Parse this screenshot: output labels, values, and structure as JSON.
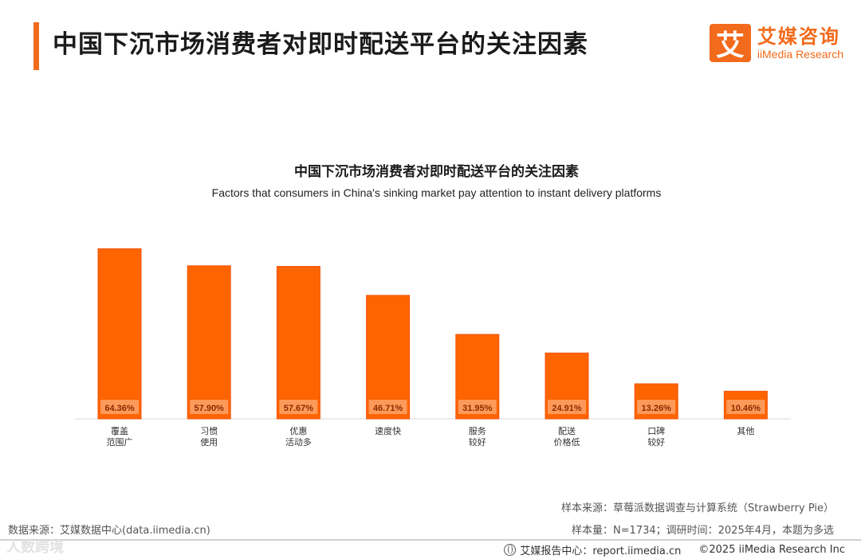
{
  "header": {
    "title": "中国下沉市场消费者对即时配送平台的关注因素",
    "brand_cn": "艾媒咨询",
    "brand_en": "iiMedia Research",
    "brand_mark": "艾"
  },
  "chart_data": {
    "type": "bar",
    "title": "中国下沉市场消费者对即时配送平台的关注因素",
    "subtitle": "Factors that consumers in China's sinking market pay attention to instant delivery platforms",
    "categories": [
      [
        "覆盖",
        "范围广"
      ],
      [
        "习惯",
        "使用"
      ],
      [
        "优惠",
        "活动多"
      ],
      [
        "速度快"
      ],
      [
        "服务",
        "较好"
      ],
      [
        "配送",
        "价格低"
      ],
      [
        "口碑",
        "较好"
      ],
      [
        "其他"
      ]
    ],
    "values": [
      64.36,
      57.9,
      57.67,
      46.71,
      31.95,
      24.91,
      13.26,
      10.46
    ],
    "value_labels": [
      "64.36%",
      "57.90%",
      "57.67%",
      "46.71%",
      "31.95%",
      "24.91%",
      "13.26%",
      "10.46%"
    ],
    "unit": "%",
    "ylim": [
      0,
      100
    ],
    "grid": false,
    "legend": "none",
    "bar_color": "#fe6400",
    "bar_border": "#f2550a"
  },
  "footer": {
    "sample_source": "样本来源：草莓派数据调查与计算系统（Strawberry Pie）",
    "sample_size": "样本量：N=1734；调研时间：2025年4月，本题为多选",
    "data_source": "数据来源：艾媒数据中心(data.iimedia.cn)",
    "report_center": "艾媒报告中心：report.iimedia.cn",
    "copyright": "©2025  iiMedia Research  Inc",
    "watermark": "人数跨境"
  }
}
